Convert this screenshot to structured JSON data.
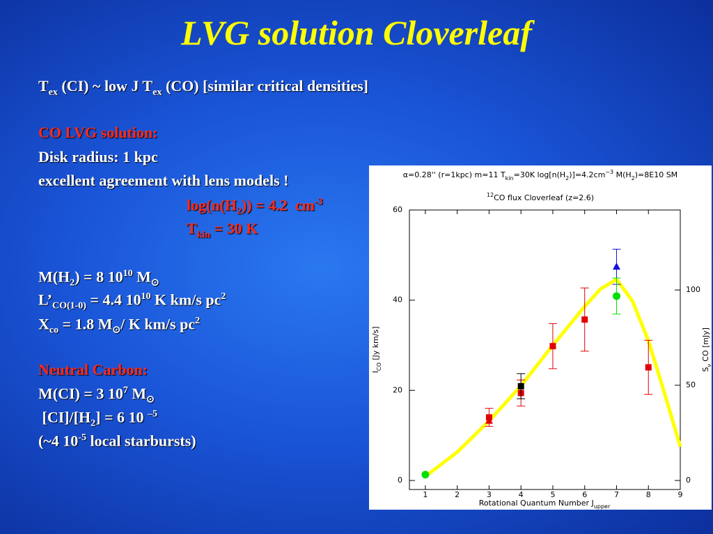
{
  "title": "LVG solution Cloverleaf",
  "lines": [
    {
      "color": "#ffffff",
      "segments": [
        "T",
        {
          "sub": "ex"
        },
        " (CI) ~ low J T",
        {
          "sub": "ex"
        },
        " (CO) [similar critical densities]"
      ]
    },
    {
      "color": "#ff2a1a",
      "segments": [
        "CO LVG solution:"
      ]
    },
    {
      "color": "#ffffff",
      "segments": [
        "Disk radius: 1 kpc"
      ]
    },
    {
      "color": "#ffffff",
      "segments": [
        "excellent agreement with lens models !"
      ]
    },
    {
      "color": "#ff2a1a",
      "segments": [
        "log(n(H",
        {
          "sub": "2"
        },
        ")) = 4.2  cm",
        {
          "sup": "-3"
        }
      ]
    },
    {
      "color": "#ff2a1a",
      "segments": [
        "T",
        {
          "sub": "kin"
        },
        " = 30 K"
      ]
    },
    {
      "color": "#ffffff",
      "segments": [
        "M(H",
        {
          "sub": "2"
        },
        ") = 8 10",
        {
          "sup": "10"
        },
        " M",
        {
          "sub": "⊙"
        }
      ]
    },
    {
      "color": "#ffffff",
      "segments": [
        "L’",
        {
          "sub": "CO(1-0)"
        },
        " = 4.4 10",
        {
          "sup": "10"
        },
        " K km/s pc",
        {
          "sup": "2"
        }
      ]
    },
    {
      "color": "#ffffff",
      "segments": [
        "X",
        {
          "sub": "co"
        },
        " = 1.8 M",
        {
          "sub": "⊙"
        },
        "/ K km/s pc",
        {
          "sup": "2"
        }
      ]
    },
    {
      "color": "#ff2a1a",
      "segments": [
        "Neutral Carbon:"
      ]
    },
    {
      "color": "#ffffff",
      "segments": [
        "M(CI) = 3 10",
        {
          "sup": "7"
        },
        " M",
        {
          "sub": "⊙"
        }
      ]
    },
    {
      "color": "#ffffff",
      "segments": [
        " [CI]/[H",
        {
          "sub": "2"
        },
        "] = 6 10 ",
        {
          "sup": "–5"
        }
      ]
    },
    {
      "color": "#ffffff",
      "segments": [
        "(~4 10",
        {
          "sup": "-5"
        },
        " local starbursts)"
      ]
    }
  ],
  "chart_data": {
    "type": "scatter",
    "header": [
      "α=0.28'' (r=1kpc) m=11 T",
      {
        "sub": "kin"
      },
      "=30K log[n(H",
      {
        "sub": "2"
      },
      ")]=4.2cm",
      {
        "sup": "−3"
      },
      " M(H",
      {
        "sub": "2"
      },
      ")=8E10 SM"
    ],
    "title": [
      {
        "sup": "12"
      },
      "CO flux Cloverleaf (z=2.6)"
    ],
    "xlabel": [
      "Rotational Quantum Number J",
      {
        "sub": "upper"
      }
    ],
    "ylabel": [
      "I",
      {
        "sub": "CO"
      },
      " [Jy km/s]"
    ],
    "y2label": [
      "S",
      {
        "sub": "ν"
      },
      " CO [mJy]"
    ],
    "xlim": [
      0.5,
      9
    ],
    "xticks": [
      1,
      2,
      3,
      4,
      5,
      6,
      7,
      8,
      9
    ],
    "ylim": [
      -2,
      60
    ],
    "yticks": [
      0,
      20,
      40,
      60
    ],
    "y2lim": [
      0,
      142
    ],
    "y2ticks": [
      0,
      50,
      100
    ],
    "series": [
      {
        "marker": "square",
        "color": "#e00000",
        "x": [
          3,
          4,
          5,
          6,
          8
        ],
        "values": [
          14,
          19.4,
          29.8,
          35.7,
          25.1
        ],
        "errors": [
          2,
          2.9,
          5,
          7,
          6
        ]
      },
      {
        "marker": "square",
        "color": "#000000",
        "x": [
          4
        ],
        "values": [
          20.9
        ],
        "errors": [
          2.8
        ]
      },
      {
        "marker": "triangle",
        "color": "#1010e0",
        "x": [
          7
        ],
        "values": [
          47.4
        ],
        "errors": [
          3.9
        ]
      },
      {
        "marker": "triangle",
        "color": "#e00000",
        "x": [
          3
        ],
        "values": [
          13.2
        ]
      },
      {
        "marker": "circle",
        "color": "#00e000",
        "x": [
          1,
          7
        ],
        "values": [
          1.3,
          40.9
        ],
        "errors": [
          null,
          4
        ]
      },
      {
        "marker": "line",
        "color": "#ffff00",
        "x": [
          1,
          2,
          3,
          4,
          5,
          6,
          6.5,
          7,
          7.5,
          8,
          8.5,
          9
        ],
        "values": [
          0.9,
          6.3,
          13.2,
          21,
          30,
          38.6,
          42.5,
          44.6,
          39.8,
          31,
          19.5,
          7.5
        ]
      }
    ]
  }
}
